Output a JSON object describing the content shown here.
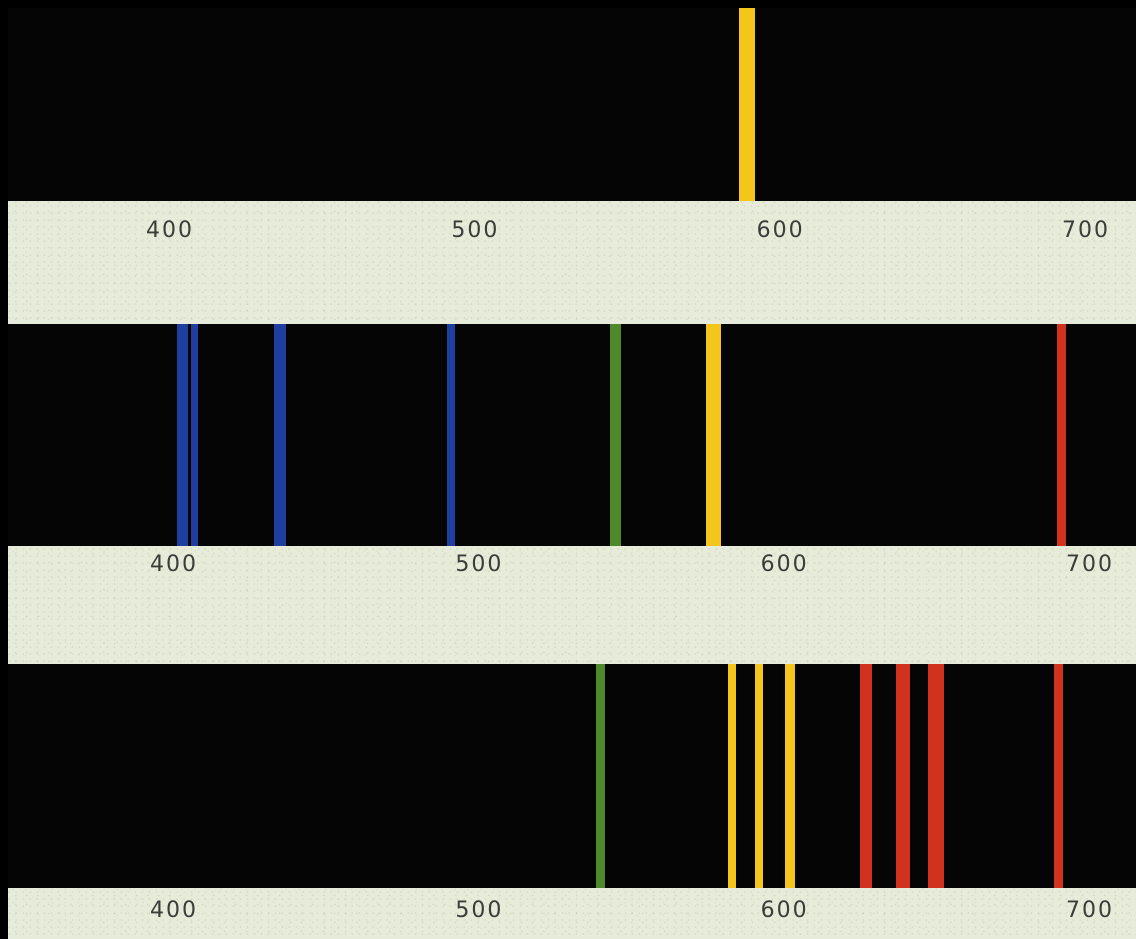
{
  "colors": {
    "background": "#e6ecd9",
    "strip": "#060505",
    "blue": "#1f3fa0",
    "green": "#4e8a2a",
    "yellow": "#f4c51a",
    "red": "#d0321e",
    "label": "#3c3c38"
  },
  "scale": {
    "unit": "nm",
    "range": [
      400,
      700
    ],
    "ticks": [
      "400",
      "500",
      "600",
      "700"
    ]
  },
  "spectra": [
    {
      "lines": [
        {
          "wavelength": 589,
          "color": "yellow",
          "weight": 2.2
        }
      ]
    },
    {
      "lines": [
        {
          "wavelength": 404,
          "color": "blue",
          "weight": 1.6
        },
        {
          "wavelength": 408,
          "color": "blue",
          "weight": 1.0
        },
        {
          "wavelength": 436,
          "color": "blue",
          "weight": 1.6
        },
        {
          "wavelength": 492,
          "color": "blue",
          "weight": 1.1
        },
        {
          "wavelength": 546,
          "color": "green",
          "weight": 1.6
        },
        {
          "wavelength": 577,
          "color": "yellow",
          "weight": 1.2
        },
        {
          "wavelength": 579,
          "color": "yellow",
          "weight": 1.2
        },
        {
          "wavelength": 692,
          "color": "red",
          "weight": 1.3
        }
      ]
    },
    {
      "lines": [
        {
          "wavelength": 541,
          "color": "green",
          "weight": 1.4
        },
        {
          "wavelength": 584,
          "color": "yellow",
          "weight": 1.2
        },
        {
          "wavelength": 593,
          "color": "yellow",
          "weight": 1.2
        },
        {
          "wavelength": 603,
          "color": "yellow",
          "weight": 1.4
        },
        {
          "wavelength": 628,
          "color": "red",
          "weight": 1.7
        },
        {
          "wavelength": 640,
          "color": "red",
          "weight": 2.0
        },
        {
          "wavelength": 651,
          "color": "red",
          "weight": 2.3
        },
        {
          "wavelength": 691,
          "color": "red",
          "weight": 1.2
        }
      ]
    }
  ]
}
